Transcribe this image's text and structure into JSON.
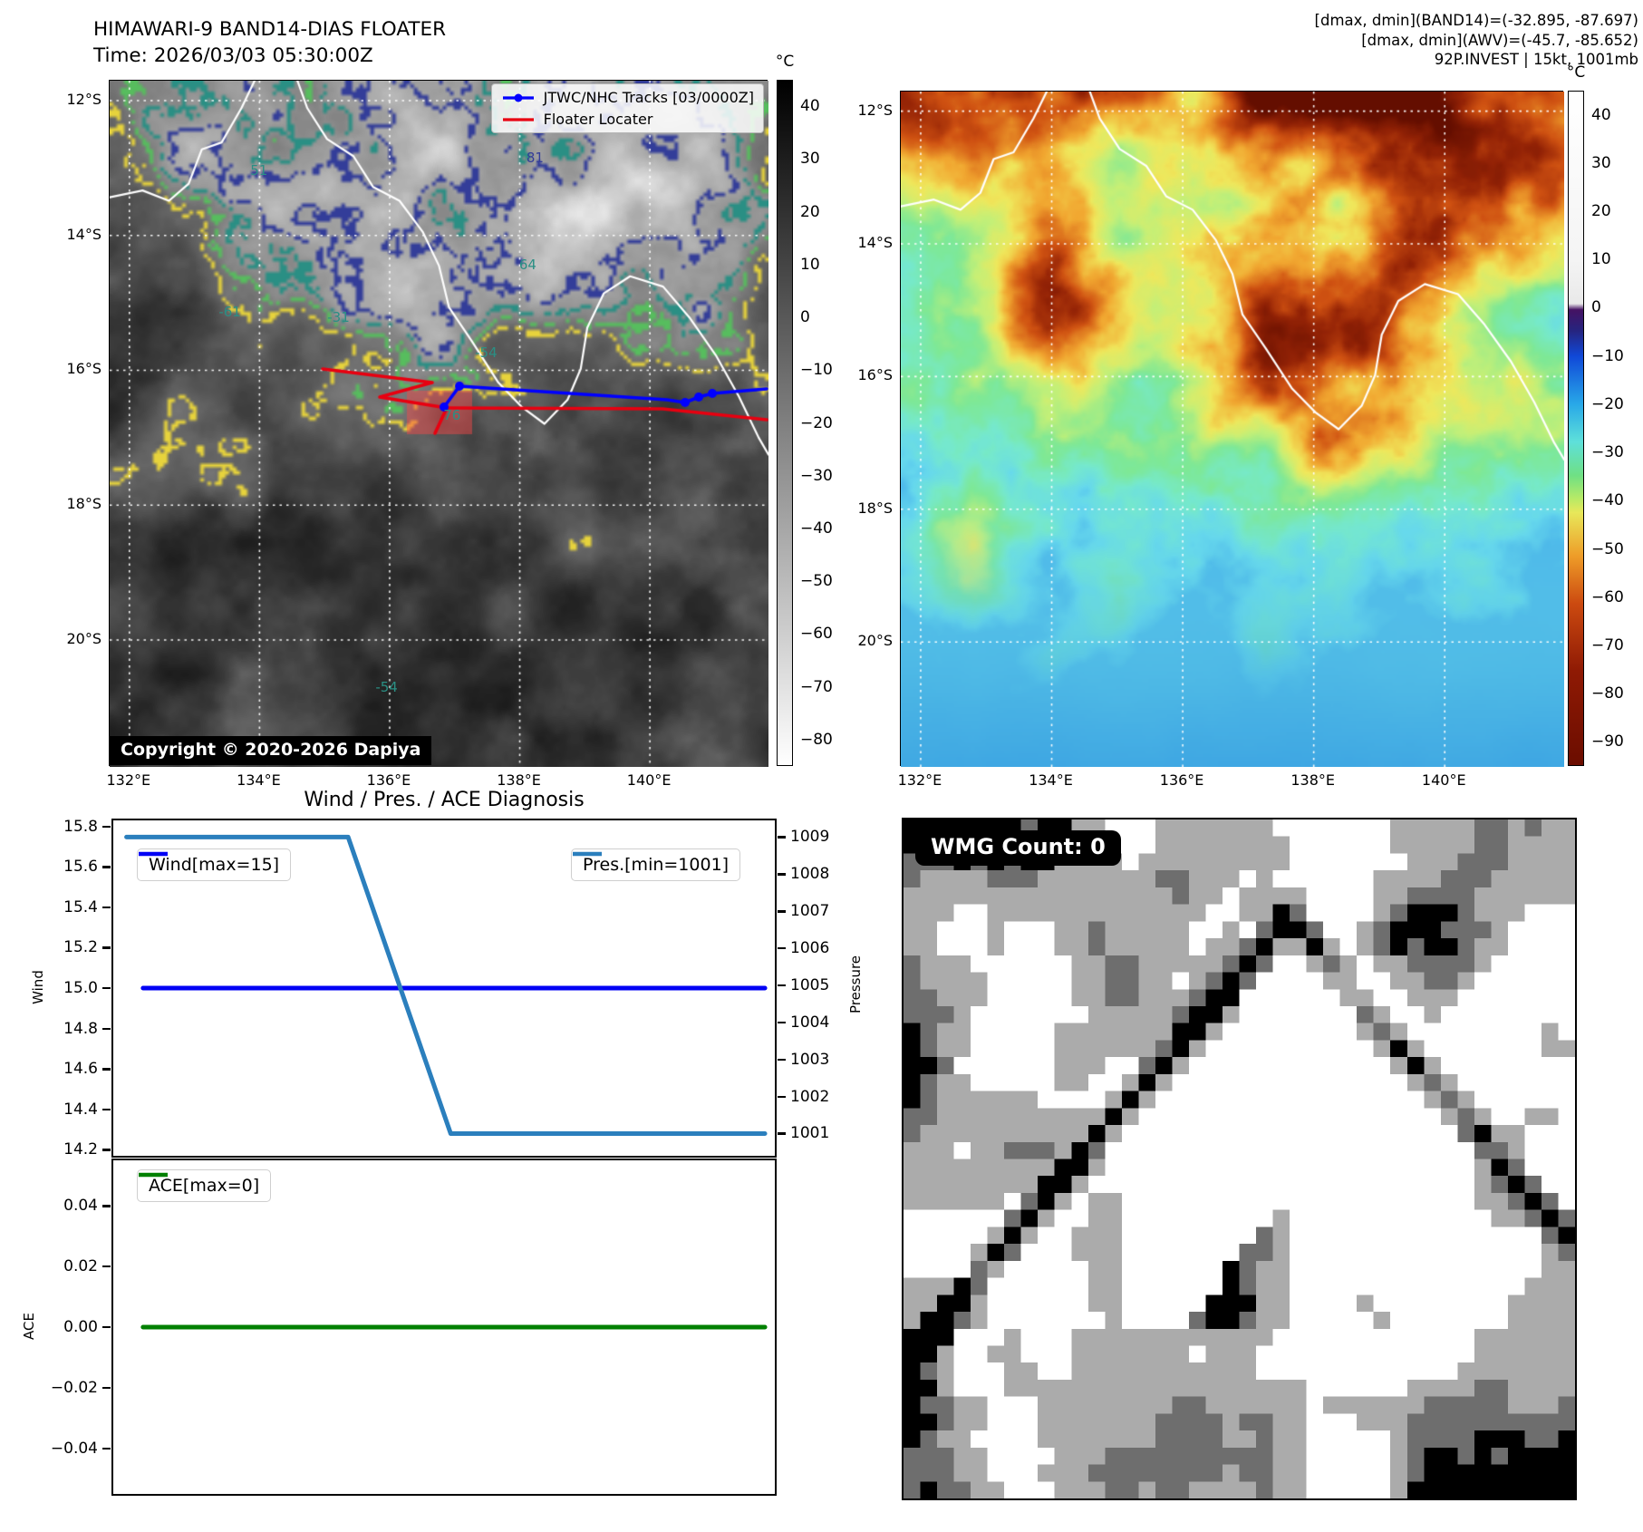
{
  "left_panel": {
    "title_line1": "HIMAWARI-9 BAND14-DIAS FLOATER",
    "title_line2": "Time: 2026/03/03 05:30:00Z",
    "map": {
      "lat_ticks": [
        "12°S",
        "14°S",
        "16°S",
        "18°S",
        "20°S"
      ],
      "lon_ticks": [
        "132°E",
        "134°E",
        "136°E",
        "138°E",
        "140°E"
      ],
      "legend_items": [
        {
          "label": "JTWC/NHC Tracks [03/0000Z]",
          "color": "#0000ff",
          "marker": "line-with-dot"
        },
        {
          "label": "Floater Locater",
          "color": "#e80010",
          "marker": "line"
        }
      ],
      "copyright": "Copyright © 2020-2026 Dapiya",
      "contour_labels": [
        {
          "text": "51",
          "fx": 0.23,
          "fy": 0.131,
          "color": "#2a8f84"
        },
        {
          "text": "81",
          "fx": 0.649,
          "fy": 0.112,
          "color": "#333d99"
        },
        {
          "text": "64",
          "fx": 0.638,
          "fy": 0.268,
          "color": "#2a8f84"
        },
        {
          "text": "-61",
          "fx": 0.182,
          "fy": 0.337,
          "color": "#2a8f84"
        },
        {
          "text": "-31",
          "fx": 0.347,
          "fy": 0.345,
          "color": "#2a8f84"
        },
        {
          "text": "-54",
          "fx": 0.571,
          "fy": 0.396,
          "color": "#2a8f84"
        },
        {
          "text": "76",
          "fx": 0.523,
          "fy": 0.487,
          "color": "#2a8f84"
        },
        {
          "text": "-54",
          "fx": 0.42,
          "fy": 0.884,
          "color": "#2a8f84"
        }
      ],
      "tracks": {
        "floater_color": "#e80010",
        "jtwc_color": "#0000ff",
        "floater_polylines": [
          [
            [
              235,
              318
            ],
            [
              356,
              333
            ],
            [
              298,
              349
            ],
            [
              372,
              361
            ],
            [
              359,
              389
            ]
          ],
          [
            [
              372,
              361
            ],
            [
              610,
              362
            ],
            [
              725,
              374
            ]
          ]
        ],
        "jtwc_polyline": [
          [
            369,
            360
          ],
          [
            386,
            337
          ],
          [
            615,
            352
          ],
          [
            635,
            355
          ],
          [
            650,
            349
          ],
          [
            665,
            345
          ],
          [
            725,
            340
          ]
        ],
        "jtwc_marker_indices": [
          0,
          1,
          3,
          4,
          5
        ],
        "floater_shade_rect": [
          328,
          342,
          72,
          48
        ],
        "floater_shade_color": "rgba(255,70,70,0.45)"
      },
      "contour_palette": [
        "#e7d33c",
        "#57bd5e",
        "#2a8f84",
        "#333d99"
      ],
      "coastline_color": "#ffffff"
    },
    "colorbar": {
      "unit": "°C",
      "ticks": [
        40,
        30,
        20,
        10,
        0,
        -10,
        -20,
        -30,
        -40,
        -50,
        -60,
        -70,
        -80
      ],
      "value_range": [
        45,
        -85
      ],
      "top_color": "#000000",
      "bottom_color": "#ffffff"
    }
  },
  "right_panel": {
    "annotation_lines": [
      "[dmax, dmin](BAND14)=(-32.895, -87.697)",
      "[dmax, dmin](AWV)=(-45.7, -85.652)",
      "92P.INVEST | 15kt, 1001mb"
    ],
    "map": {
      "lat_ticks": [
        "12°S",
        "14°S",
        "16°S",
        "18°S",
        "20°S"
      ],
      "lon_ticks": [
        "132°E",
        "134°E",
        "136°E",
        "138°E",
        "140°E"
      ]
    },
    "colorbar": {
      "unit": "°C",
      "ticks": [
        40,
        30,
        20,
        10,
        0,
        -10,
        -20,
        -30,
        -40,
        -50,
        -60,
        -70,
        -80,
        -90
      ],
      "value_range": [
        45,
        -95
      ]
    }
  },
  "wmg_panel": {
    "label": "WMG Count: 0",
    "levels": [
      "#ffffff",
      "#ababab",
      "#6e6e6e",
      "#000000"
    ]
  },
  "chart_data": {
    "type": "line",
    "title": "Wind / Pres. / ACE Diagnosis",
    "x_range": [
      0,
      1
    ],
    "panels": [
      {
        "name": "wind_pressure",
        "left_axis": {
          "label": "Wind",
          "ticks": [
            15.8,
            15.6,
            15.4,
            15.2,
            15.0,
            14.8,
            14.6,
            14.4,
            14.2
          ],
          "lim": [
            14.17,
            15.83
          ]
        },
        "right_axis": {
          "label": "Pressure",
          "ticks": [
            1009,
            1008,
            1007,
            1006,
            1005,
            1004,
            1003,
            1002,
            1001
          ],
          "lim": [
            1000.4,
            1009.45
          ]
        },
        "series": [
          {
            "name": "Wind[max=15]",
            "color": "#0000f5",
            "axis": "left",
            "x": [
              0.045,
              0.985
            ],
            "y": [
              15,
              15
            ]
          },
          {
            "name": "Pres.[min=1001]",
            "color": "#2b7fbd",
            "axis": "right",
            "x": [
              0.02,
              0.355,
              0.51,
              0.985
            ],
            "y": [
              1009,
              1009,
              1001,
              1001
            ]
          }
        ]
      },
      {
        "name": "ace",
        "left_axis": {
          "label": "ACE",
          "ticks": [
            0.04,
            0.02,
            0.0,
            -0.02,
            -0.04
          ],
          "lim": [
            -0.055,
            0.055
          ]
        },
        "series": [
          {
            "name": "ACE[max=0]",
            "color": "#008000",
            "axis": "left",
            "x": [
              0.045,
              0.985
            ],
            "y": [
              0,
              0
            ]
          }
        ]
      }
    ]
  },
  "coastline": {
    "color": "#ffffff",
    "segments": [
      [
        [
          0.0,
          0.17
        ],
        [
          0.05,
          0.16
        ],
        [
          0.09,
          0.175
        ],
        [
          0.12,
          0.15
        ],
        [
          0.14,
          0.1
        ],
        [
          0.17,
          0.09
        ],
        [
          0.2,
          0.04
        ],
        [
          0.22,
          0.0
        ]
      ],
      [
        [
          0.285,
          0.0
        ],
        [
          0.3,
          0.04
        ],
        [
          0.33,
          0.085
        ],
        [
          0.37,
          0.11
        ],
        [
          0.4,
          0.155
        ],
        [
          0.44,
          0.175
        ],
        [
          0.475,
          0.22
        ],
        [
          0.5,
          0.27
        ],
        [
          0.515,
          0.33
        ],
        [
          0.55,
          0.38
        ],
        [
          0.59,
          0.44
        ],
        [
          0.625,
          0.475
        ],
        [
          0.66,
          0.5
        ],
        [
          0.695,
          0.465
        ],
        [
          0.715,
          0.42
        ],
        [
          0.725,
          0.36
        ],
        [
          0.75,
          0.31
        ],
        [
          0.79,
          0.285
        ],
        [
          0.84,
          0.3
        ],
        [
          0.88,
          0.345
        ],
        [
          0.92,
          0.4
        ],
        [
          0.955,
          0.46
        ],
        [
          0.985,
          0.52
        ],
        [
          1.0,
          0.545
        ]
      ]
    ]
  }
}
